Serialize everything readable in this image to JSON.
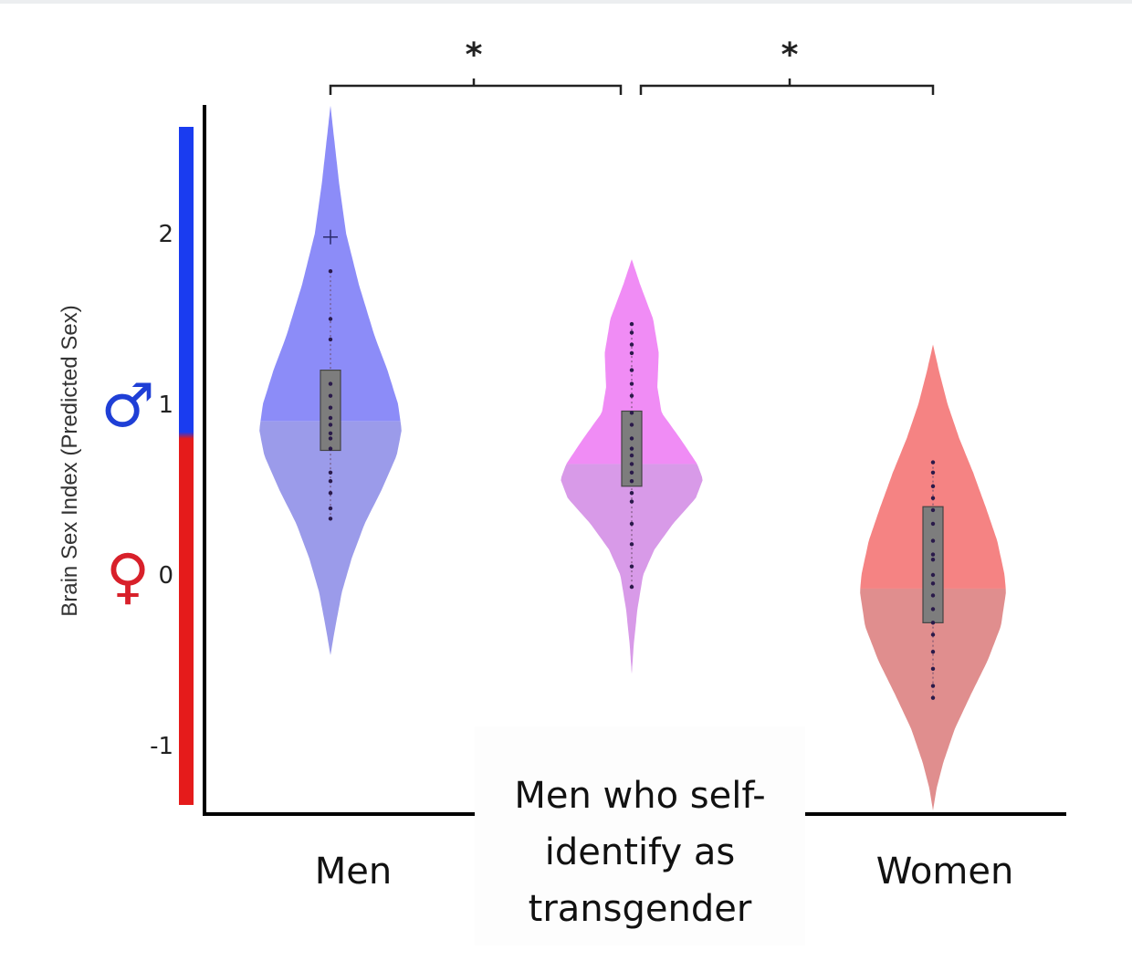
{
  "chart_data": {
    "type": "violin",
    "ylabel": "Brain Sex Index (Predicted Sex)",
    "ylim": [
      -1.4,
      2.6
    ],
    "yticks": [
      -1,
      0,
      1,
      2
    ],
    "ytick_labels": [
      "-1",
      "0",
      "1",
      "2"
    ],
    "y_scale_markers": [
      {
        "symbol": "♂",
        "value": 1,
        "color": "#1f3fd6"
      },
      {
        "symbol": "♀",
        "value": 0,
        "color": "#d8202a"
      }
    ],
    "y_scale_bar": {
      "top_color": "#1a3cf0",
      "bottom_color": "#e51b1b"
    },
    "categories": [
      "Men",
      "Men who self-\nidentify as\ntransgender",
      "Women"
    ],
    "category_lines": [
      [
        "Men"
      ],
      [
        "Men who self-",
        "identify as",
        "transgender"
      ],
      [
        "Women"
      ]
    ],
    "series": [
      {
        "colors": {
          "upper": "#8c8cf8",
          "lower": "#9b9bea"
        },
        "split_at": 0.9,
        "box": {
          "q1": 0.73,
          "q3": 1.2
        },
        "outlier": 1.98,
        "points": [
          1.78,
          1.5,
          1.38,
          1.12,
          1.05,
          0.98,
          0.92,
          0.88,
          0.83,
          0.8,
          0.74,
          0.6,
          0.55,
          0.48,
          0.39,
          0.33
        ],
        "violin": {
          "ymin": -0.47,
          "ymax": 2.75,
          "profile": [
            [
              2.75,
              0.0
            ],
            [
              2.6,
              0.04
            ],
            [
              2.3,
              0.12
            ],
            [
              2.0,
              0.22
            ],
            [
              1.7,
              0.4
            ],
            [
              1.4,
              0.62
            ],
            [
              1.2,
              0.8
            ],
            [
              1.0,
              0.95
            ],
            [
              0.85,
              1.0
            ],
            [
              0.7,
              0.93
            ],
            [
              0.5,
              0.72
            ],
            [
              0.3,
              0.48
            ],
            [
              0.1,
              0.3
            ],
            [
              -0.1,
              0.16
            ],
            [
              -0.3,
              0.07
            ],
            [
              -0.47,
              0.0
            ]
          ],
          "max_half_width": 78
        }
      },
      {
        "colors": {
          "upper": "#f08cf5",
          "lower": "#d89ae8"
        },
        "split_at": 0.65,
        "box": {
          "q1": 0.52,
          "q3": 0.96
        },
        "points": [
          1.47,
          1.42,
          1.35,
          1.3,
          1.2,
          1.12,
          1.05,
          0.95,
          0.88,
          0.8,
          0.74,
          0.7,
          0.65,
          0.6,
          0.55,
          0.48,
          0.43,
          0.3,
          0.18,
          0.05,
          -0.07
        ],
        "violin": {
          "ymin": -0.58,
          "ymax": 1.85,
          "profile": [
            [
              1.85,
              0.0
            ],
            [
              1.7,
              0.12
            ],
            [
              1.5,
              0.3
            ],
            [
              1.3,
              0.38
            ],
            [
              1.1,
              0.36
            ],
            [
              0.95,
              0.42
            ],
            [
              0.8,
              0.68
            ],
            [
              0.65,
              0.92
            ],
            [
              0.56,
              1.0
            ],
            [
              0.45,
              0.9
            ],
            [
              0.3,
              0.58
            ],
            [
              0.15,
              0.32
            ],
            [
              0.0,
              0.16
            ],
            [
              -0.2,
              0.08
            ],
            [
              -0.4,
              0.03
            ],
            [
              -0.58,
              0.0
            ]
          ],
          "max_half_width": 78
        }
      },
      {
        "colors": {
          "upper": "#f58383",
          "lower": "#e08e8e"
        },
        "split_at": -0.08,
        "box": {
          "q1": -0.28,
          "q3": 0.4
        },
        "points": [
          0.66,
          0.6,
          0.52,
          0.45,
          0.38,
          0.3,
          0.2,
          0.12,
          0.09,
          0.0,
          -0.05,
          -0.12,
          -0.2,
          -0.28,
          -0.35,
          -0.45,
          -0.55,
          -0.65,
          -0.72
        ],
        "violin": {
          "ymin": -1.38,
          "ymax": 1.35,
          "profile": [
            [
              1.35,
              0.0
            ],
            [
              1.2,
              0.08
            ],
            [
              1.0,
              0.2
            ],
            [
              0.8,
              0.36
            ],
            [
              0.6,
              0.55
            ],
            [
              0.4,
              0.72
            ],
            [
              0.2,
              0.88
            ],
            [
              0.0,
              0.98
            ],
            [
              -0.1,
              1.0
            ],
            [
              -0.3,
              0.93
            ],
            [
              -0.5,
              0.75
            ],
            [
              -0.7,
              0.52
            ],
            [
              -0.9,
              0.3
            ],
            [
              -1.1,
              0.14
            ],
            [
              -1.25,
              0.05
            ],
            [
              -1.38,
              0.0
            ]
          ],
          "max_half_width": 80
        }
      }
    ],
    "significance": [
      {
        "from": 0,
        "to": 1,
        "label": "*"
      },
      {
        "from": 1,
        "to": 2,
        "label": "*"
      }
    ]
  }
}
